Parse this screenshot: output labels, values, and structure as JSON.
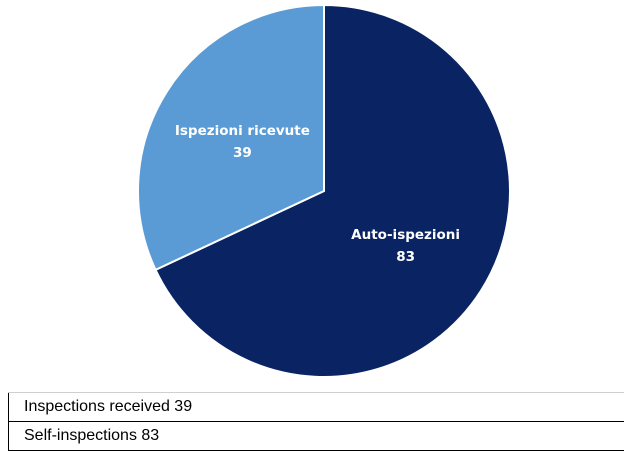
{
  "chart_data": {
    "type": "pie",
    "slices": [
      {
        "label": "Auto-ispezioni",
        "value": 83,
        "color": "#0a2463"
      },
      {
        "label": "Ispezioni ricevute",
        "value": 39,
        "color": "#5b9bd5"
      }
    ]
  },
  "table": {
    "rows": [
      "Inspections received 39",
      "Self-inspections 83"
    ]
  }
}
